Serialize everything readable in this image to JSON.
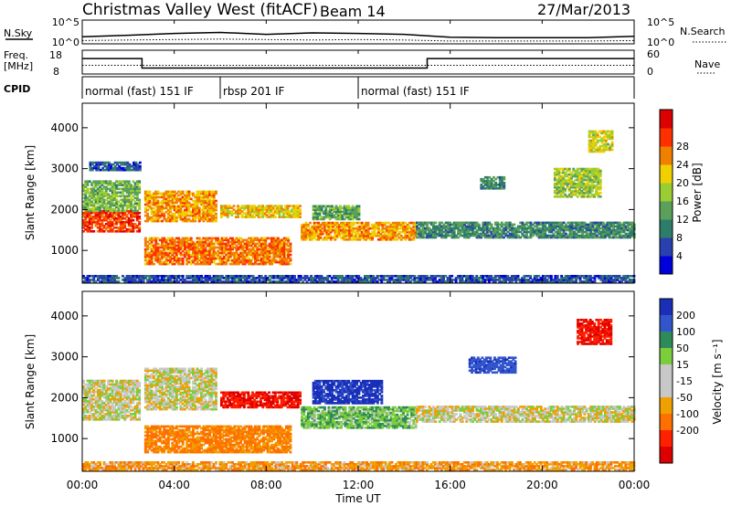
{
  "header": {
    "title_left": "Christmas Valley West (fitACF)",
    "title_beam": "Beam 14",
    "date": "27/Mar/2013"
  },
  "nsky": {
    "label": "N.Sky",
    "left_ticks": [
      "10^5",
      "10^0"
    ],
    "right_ticks": [
      "10^5",
      "10^0"
    ],
    "right_label": "N.Search"
  },
  "freq": {
    "label_line1": "Freq.",
    "label_line2": "[MHz]",
    "left_ticks": [
      "18",
      "8"
    ],
    "right_ticks": [
      "60",
      "0"
    ],
    "right_label": "Nave"
  },
  "cpid": {
    "label": "CPID",
    "segments": [
      {
        "start_hour": 0,
        "end_hour": 6,
        "text": "normal (fast) 151 IF"
      },
      {
        "start_hour": 6,
        "end_hour": 12,
        "text": "rbsp 201 IF"
      },
      {
        "start_hour": 12,
        "end_hour": 24,
        "text": "normal (fast) 151 IF"
      }
    ]
  },
  "time_axis": {
    "label": "Time UT",
    "ticks": [
      "00:00",
      "04:00",
      "08:00",
      "12:00",
      "16:00",
      "20:00",
      "00:00"
    ]
  },
  "chart_data": [
    {
      "type": "line",
      "name": "N.Sky / N.Search",
      "x_range_hours": [
        0,
        24
      ],
      "y_scale": "log",
      "ylim_labels": [
        "10^0",
        "10^5"
      ],
      "x": [
        0.0,
        2.0,
        4.0,
        6.0,
        8.0,
        10.0,
        12.0,
        14.0,
        16.0,
        18.0,
        20.0,
        22.0,
        24.0
      ],
      "nsky": [
        1.5,
        1.8,
        2.2,
        2.4,
        2.0,
        2.3,
        2.2,
        2.0,
        1.4,
        1.3,
        1.3,
        1.3,
        1.6
      ],
      "nsearch": [
        0.7,
        0.8,
        0.9,
        1.0,
        0.9,
        0.8,
        0.9,
        0.8,
        0.6,
        0.6,
        0.6,
        0.6,
        0.7
      ]
    },
    {
      "type": "line",
      "name": "Freq / Nave",
      "freq_mhz": {
        "x_hours": [
          0,
          2.6,
          2.6,
          15.0,
          15.0,
          24
        ],
        "values": [
          14.5,
          14.5,
          10.5,
          10.5,
          14.5,
          14.5
        ],
        "ylim": [
          8,
          18
        ]
      },
      "nave": {
        "x_hours": [
          0,
          24
        ],
        "values": [
          22,
          22
        ],
        "ylim": [
          0,
          60
        ]
      }
    },
    {
      "type": "heatmap",
      "title": "Power",
      "ylabel": "Slant Range [km]",
      "xlabel": "Time UT",
      "unit": "dB",
      "ylim": [
        200,
        4600
      ],
      "y_ticks": [
        1000,
        2000,
        3000,
        4000
      ],
      "colorbar_ticks": [
        4,
        8,
        12,
        16,
        20,
        24,
        28
      ],
      "colorbar_label": "Power [dB]",
      "colorbar_colors": [
        "#0000dd",
        "#2a3fb0",
        "#2e7d6b",
        "#5aa05a",
        "#9acd32",
        "#f0d000",
        "#f08000",
        "#ff3000",
        "#dd0000"
      ],
      "features": [
        {
          "t0": 0.0,
          "t1": 2.5,
          "r0": 1450,
          "r1": 1950,
          "level": 27
        },
        {
          "t0": 0.0,
          "t1": 2.5,
          "r0": 1950,
          "r1": 2700,
          "level": 14
        },
        {
          "t0": 0.3,
          "t1": 2.5,
          "r0": 2950,
          "r1": 3150,
          "level": 6
        },
        {
          "t0": 2.7,
          "t1": 5.8,
          "r0": 1700,
          "r1": 2450,
          "level": 22
        },
        {
          "t0": 2.7,
          "t1": 9.0,
          "r0": 650,
          "r1": 1300,
          "level": 24
        },
        {
          "t0": 6.0,
          "t1": 9.5,
          "r0": 1800,
          "r1": 2100,
          "level": 20
        },
        {
          "t0": 9.5,
          "t1": 14.5,
          "r0": 1250,
          "r1": 1700,
          "level": 22
        },
        {
          "t0": 10.0,
          "t1": 12.0,
          "r0": 1750,
          "r1": 2100,
          "level": 12
        },
        {
          "t0": 14.5,
          "t1": 24.0,
          "r0": 1300,
          "r1": 1700,
          "level": 10
        },
        {
          "t0": 17.3,
          "t1": 18.3,
          "r0": 2500,
          "r1": 2800,
          "level": 10
        },
        {
          "t0": 20.5,
          "t1": 22.5,
          "r0": 2300,
          "r1": 3000,
          "level": 16
        },
        {
          "t0": 22.0,
          "t1": 23.0,
          "r0": 3400,
          "r1": 3900,
          "level": 18
        },
        {
          "t0": 0.0,
          "t1": 24.0,
          "r0": 220,
          "r1": 380,
          "level": 6
        }
      ]
    },
    {
      "type": "heatmap",
      "title": "Velocity",
      "ylabel": "Slant Range [km]",
      "xlabel": "Time UT",
      "unit": "m s^-1",
      "ylim": [
        200,
        4600
      ],
      "y_ticks": [
        1000,
        2000,
        3000,
        4000
      ],
      "colorbar_ticks": [
        200,
        100,
        50,
        15,
        -15,
        -50,
        -100,
        -200
      ],
      "colorbar_label": "Velocity [m s^-1]",
      "colorbar_colors": [
        "#1a2fb8",
        "#3355cc",
        "#2e8b57",
        "#7ccd3c",
        "#c8c8c8",
        "#c8c8c8",
        "#f0a000",
        "#ff7000",
        "#ff2000",
        "#dd0000"
      ],
      "features": [
        {
          "t0": 0.0,
          "t1": 2.5,
          "r0": 1450,
          "r1": 2400,
          "velocity": 0
        },
        {
          "t0": 2.7,
          "t1": 5.8,
          "r0": 1700,
          "r1": 2700,
          "velocity": 0
        },
        {
          "t0": 2.7,
          "t1": 9.0,
          "r0": 650,
          "r1": 1300,
          "velocity": -60
        },
        {
          "t0": 6.0,
          "t1": 9.5,
          "r0": 1750,
          "r1": 2150,
          "velocity": -200
        },
        {
          "t0": 9.5,
          "t1": 14.5,
          "r0": 1250,
          "r1": 1750,
          "velocity": 40
        },
        {
          "t0": 10.0,
          "t1": 13.0,
          "r0": 1850,
          "r1": 2400,
          "velocity": 220
        },
        {
          "t0": 14.5,
          "t1": 24.0,
          "r0": 1400,
          "r1": 1800,
          "velocity": 0
        },
        {
          "t0": 16.8,
          "t1": 18.8,
          "r0": 2600,
          "r1": 3000,
          "velocity": 180
        },
        {
          "t0": 21.5,
          "t1": 23.0,
          "r0": 3300,
          "r1": 3900,
          "velocity": -200
        },
        {
          "t0": 0.0,
          "t1": 24.0,
          "r0": 220,
          "r1": 420,
          "velocity": -40
        }
      ]
    }
  ]
}
